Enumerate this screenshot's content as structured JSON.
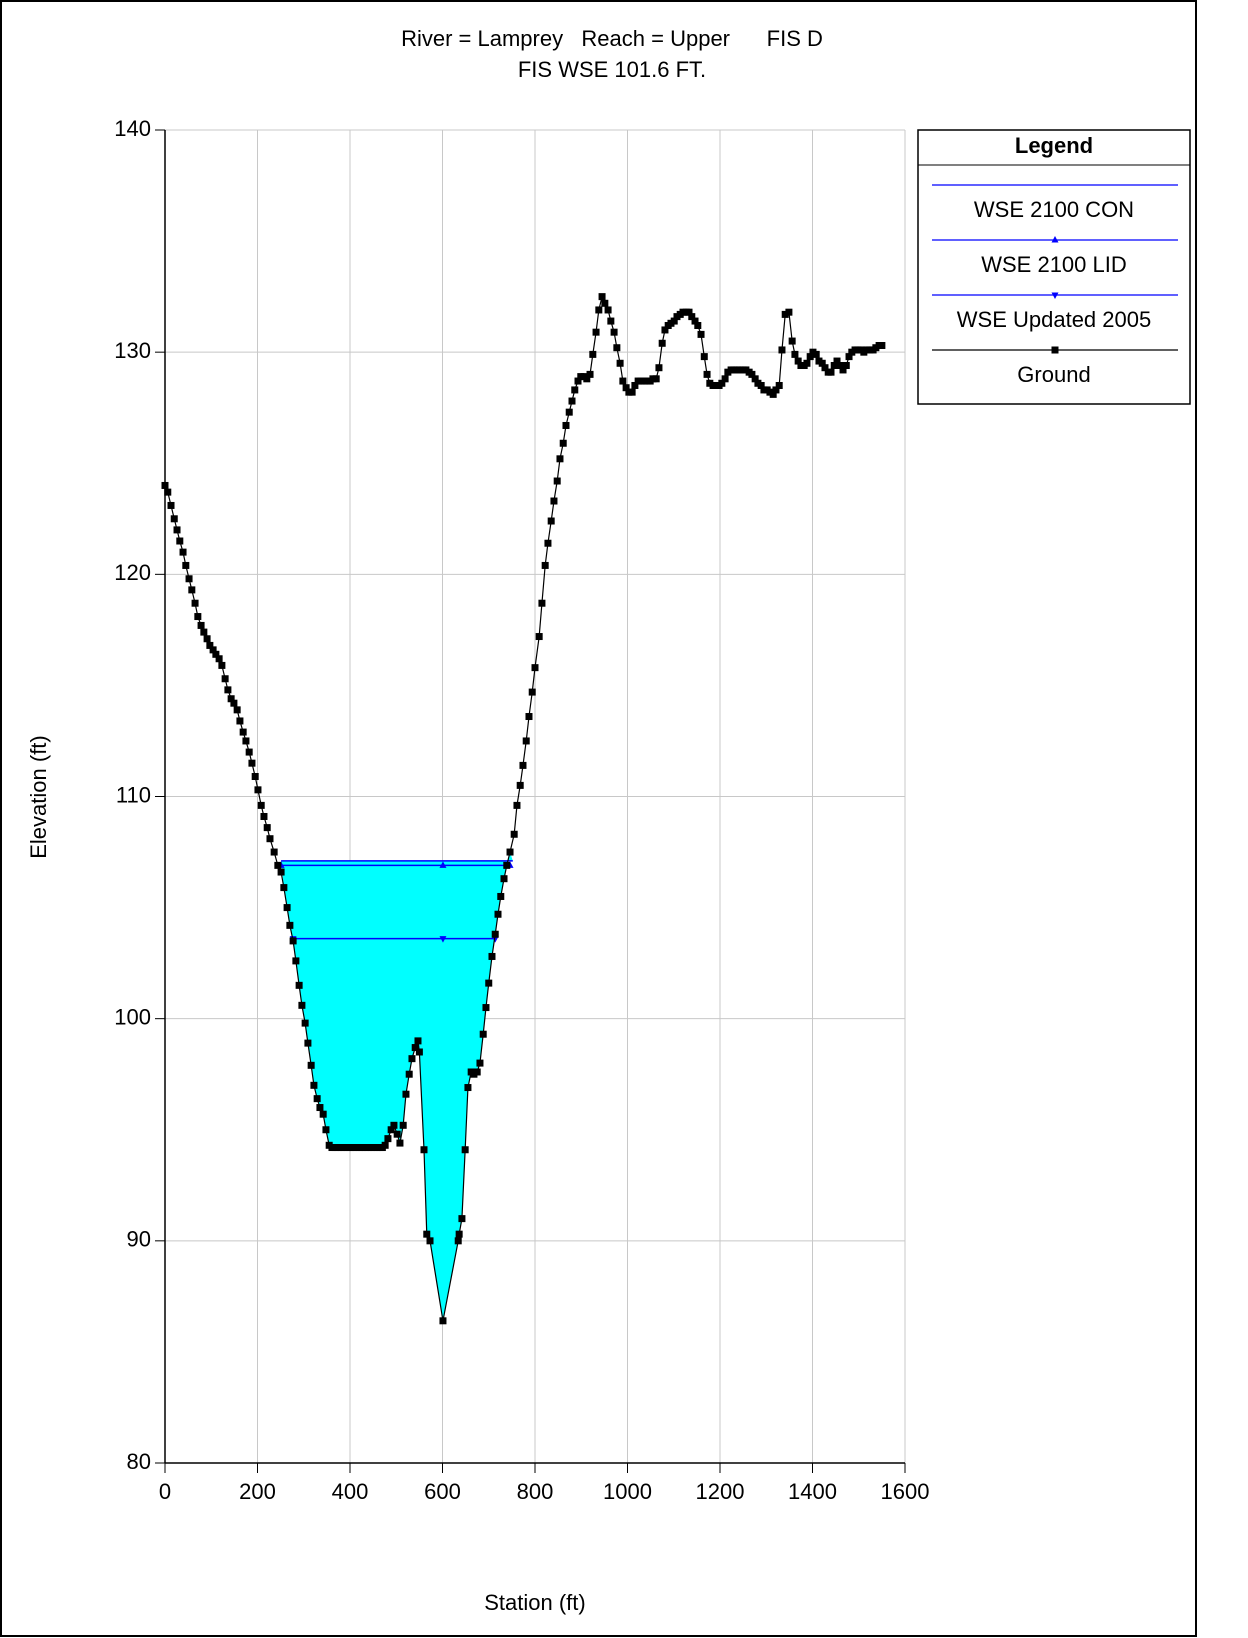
{
  "chart_data": {
    "type": "line",
    "title": "River = Lamprey   Reach = Upper      FIS D",
    "subtitle": "FIS WSE 101.6 FT.",
    "x_label": "Station (ft)",
    "y_label": "Elevation (ft)",
    "legend_title": "Legend",
    "legend": "right",
    "grid": true,
    "xlim": [
      0,
      1600
    ],
    "xticks": [
      0,
      200,
      400,
      600,
      800,
      1000,
      1200,
      1400,
      1600
    ],
    "ylim": [
      80,
      140
    ],
    "yticks": [
      80,
      90,
      100,
      110,
      120,
      130,
      140
    ],
    "series": [
      {
        "name": "WSE 2100 CON",
        "color": "#0000ff",
        "fill": "#00ffff",
        "x": [
          251,
          752
        ],
        "values": [
          107.1,
          107.1
        ]
      },
      {
        "name": "WSE 2100 LID",
        "color": "#0000ff",
        "marker": "triangle-up",
        "x": [
          251,
          601,
          746
        ],
        "values": [
          106.9,
          106.9,
          106.9
        ]
      },
      {
        "name": "WSE Updated 2005",
        "color": "#0000ff",
        "marker": "triangle-down",
        "x": [
          277,
          601,
          714
        ],
        "values": [
          103.6,
          103.6,
          103.6
        ]
      },
      {
        "name": "Ground",
        "color": "#000000",
        "marker": "square",
        "x": [
          0,
          6,
          13,
          20,
          26,
          32,
          39,
          45,
          52,
          58,
          65,
          71,
          78,
          84,
          91,
          97,
          104,
          110,
          117,
          123,
          130,
          136,
          143,
          149,
          156,
          162,
          169,
          175,
          182,
          188,
          195,
          201,
          208,
          214,
          221,
          227,
          236,
          244,
          251,
          257,
          264,
          270,
          277,
          283,
          290,
          296,
          303,
          309,
          316,
          322,
          329,
          335,
          342,
          348,
          355,
          361,
          368,
          374,
          381,
          387,
          394,
          400,
          407,
          413,
          420,
          426,
          433,
          439,
          446,
          452,
          459,
          465,
          470,
          476,
          482,
          489,
          495,
          502,
          508,
          515,
          521,
          528,
          534,
          541,
          547,
          550,
          560,
          566,
          573,
          601,
          634,
          636,
          642,
          649,
          655,
          662,
          668,
          675,
          681,
          688,
          694,
          700,
          707,
          714,
          720,
          726,
          733,
          739,
          746,
          755,
          761,
          768,
          774,
          781,
          787,
          794,
          800,
          809,
          815,
          822,
          828,
          835,
          841,
          848,
          854,
          861,
          867,
          874,
          880,
          886,
          893,
          899,
          906,
          912,
          919,
          925,
          932,
          938,
          945,
          951,
          958,
          964,
          971,
          977,
          984,
          990,
          997,
          1003,
          1010,
          1016,
          1023,
          1029,
          1036,
          1042,
          1049,
          1055,
          1062,
          1068,
          1075,
          1081,
          1088,
          1094,
          1101,
          1107,
          1114,
          1120,
          1127,
          1133,
          1139,
          1146,
          1152,
          1159,
          1166,
          1172,
          1178,
          1185,
          1191,
          1198,
          1204,
          1211,
          1217,
          1224,
          1230,
          1237,
          1243,
          1250,
          1256,
          1263,
          1269,
          1276,
          1282,
          1289,
          1295,
          1302,
          1308,
          1315,
          1321,
          1328,
          1334,
          1341,
          1349,
          1356,
          1362,
          1369,
          1375,
          1382,
          1388,
          1395,
          1401,
          1408,
          1414,
          1421,
          1427,
          1434,
          1440,
          1447,
          1453,
          1460,
          1466,
          1473,
          1479,
          1485,
          1492,
          1498,
          1505,
          1511,
          1518,
          1524,
          1531,
          1537,
          1544,
          1550
        ],
        "values": [
          124.0,
          123.7,
          123.1,
          122.5,
          122.0,
          121.5,
          121.0,
          120.4,
          119.8,
          119.3,
          118.7,
          118.1,
          117.7,
          117.4,
          117.1,
          116.8,
          116.6,
          116.4,
          116.2,
          115.9,
          115.3,
          114.8,
          114.4,
          114.2,
          113.9,
          113.4,
          112.9,
          112.5,
          112.0,
          111.5,
          110.9,
          110.3,
          109.6,
          109.1,
          108.6,
          108.1,
          107.5,
          106.9,
          106.6,
          105.9,
          105.0,
          104.2,
          103.5,
          102.6,
          101.5,
          100.6,
          99.8,
          98.9,
          97.9,
          97.0,
          96.4,
          96.0,
          95.7,
          95.0,
          94.3,
          94.2,
          94.2,
          94.2,
          94.2,
          94.2,
          94.2,
          94.2,
          94.2,
          94.2,
          94.2,
          94.2,
          94.2,
          94.2,
          94.2,
          94.2,
          94.2,
          94.2,
          94.2,
          94.3,
          94.6,
          95.0,
          95.2,
          94.8,
          94.4,
          95.2,
          96.6,
          97.5,
          98.2,
          98.7,
          99.0,
          98.5,
          94.1,
          90.3,
          90.0,
          86.4,
          90.0,
          90.3,
          91.0,
          94.1,
          96.9,
          97.6,
          97.5,
          97.6,
          98.0,
          99.3,
          100.5,
          101.6,
          102.8,
          103.8,
          104.7,
          105.5,
          106.3,
          106.9,
          107.5,
          108.3,
          109.6,
          110.5,
          111.4,
          112.5,
          113.6,
          114.7,
          115.8,
          117.2,
          118.7,
          120.4,
          121.4,
          122.4,
          123.3,
          124.2,
          125.2,
          125.9,
          126.7,
          127.3,
          127.8,
          128.3,
          128.7,
          128.9,
          128.9,
          128.8,
          129.0,
          129.9,
          130.9,
          131.9,
          132.5,
          132.2,
          131.9,
          131.4,
          130.9,
          130.2,
          129.5,
          128.7,
          128.4,
          128.2,
          128.2,
          128.5,
          128.7,
          128.7,
          128.7,
          128.7,
          128.7,
          128.8,
          128.8,
          129.3,
          130.4,
          131.0,
          131.2,
          131.3,
          131.4,
          131.6,
          131.7,
          131.8,
          131.8,
          131.8,
          131.6,
          131.4,
          131.2,
          130.8,
          129.8,
          129.0,
          128.6,
          128.5,
          128.5,
          128.5,
          128.6,
          128.8,
          129.1,
          129.2,
          129.2,
          129.2,
          129.2,
          129.2,
          129.2,
          129.1,
          129.0,
          128.8,
          128.6,
          128.5,
          128.3,
          128.3,
          128.2,
          128.1,
          128.3,
          128.5,
          130.1,
          131.7,
          131.8,
          130.5,
          129.9,
          129.6,
          129.4,
          129.4,
          129.5,
          129.8,
          130.0,
          129.9,
          129.6,
          129.5,
          129.3,
          129.1,
          129.1,
          129.4,
          129.6,
          129.4,
          129.2,
          129.4,
          129.8,
          130.0,
          130.1,
          130.1,
          130.1,
          130.0,
          130.1,
          130.1,
          130.1,
          130.2,
          130.3,
          130.3
        ]
      }
    ]
  }
}
